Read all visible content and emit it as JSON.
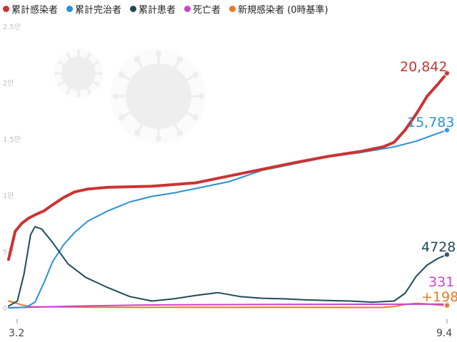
{
  "chart_data": {
    "type": "line",
    "title": "",
    "xlabel": "",
    "ylabel": "",
    "x_range": [
      "3.2",
      "9.4"
    ],
    "x_tick_labels": [
      "3.2",
      "9.4"
    ],
    "y_tick_labels": [
      "0",
      "5천",
      "1만",
      "1.5만",
      "2만",
      "2.5만"
    ],
    "y_tick_values": [
      0,
      5000,
      10000,
      15000,
      20000,
      25000
    ],
    "ylim": [
      0,
      25000
    ],
    "grid": false,
    "legend": "top-left",
    "series": [
      {
        "name": "累計感染者",
        "color": "#cc3333",
        "end_label": "20,842",
        "points": [
          [
            0,
            4300
          ],
          [
            3,
            6800
          ],
          [
            6,
            7500
          ],
          [
            9,
            7950
          ],
          [
            12,
            8250
          ],
          [
            16,
            8600
          ],
          [
            20,
            9150
          ],
          [
            25,
            9800
          ],
          [
            30,
            10300
          ],
          [
            36,
            10550
          ],
          [
            45,
            10700
          ],
          [
            55,
            10750
          ],
          [
            65,
            10800
          ],
          [
            75,
            10950
          ],
          [
            85,
            11100
          ],
          [
            100,
            11700
          ],
          [
            115,
            12300
          ],
          [
            130,
            12900
          ],
          [
            145,
            13450
          ],
          [
            160,
            13900
          ],
          [
            170,
            14300
          ],
          [
            175,
            14700
          ],
          [
            180,
            15800
          ],
          [
            185,
            17200
          ],
          [
            190,
            18800
          ],
          [
            195,
            19900
          ],
          [
            199,
            20842
          ]
        ]
      },
      {
        "name": "累計完治者",
        "color": "#2b8fd6",
        "end_label": "15,783",
        "points": [
          [
            0,
            0
          ],
          [
            8,
            50
          ],
          [
            12,
            500
          ],
          [
            16,
            2200
          ],
          [
            20,
            4100
          ],
          [
            25,
            5600
          ],
          [
            30,
            6700
          ],
          [
            36,
            7700
          ],
          [
            45,
            8600
          ],
          [
            55,
            9400
          ],
          [
            65,
            9900
          ],
          [
            75,
            10200
          ],
          [
            85,
            10600
          ],
          [
            100,
            11200
          ],
          [
            115,
            12200
          ],
          [
            130,
            12800
          ],
          [
            145,
            13400
          ],
          [
            160,
            13800
          ],
          [
            175,
            14300
          ],
          [
            185,
            14800
          ],
          [
            192,
            15300
          ],
          [
            199,
            15783
          ]
        ]
      },
      {
        "name": "累計患者",
        "color": "#1f4a5c",
        "end_label": "4728",
        "points": [
          [
            0,
            150
          ],
          [
            4,
            600
          ],
          [
            7,
            3000
          ],
          [
            10,
            6500
          ],
          [
            12,
            7200
          ],
          [
            15,
            7000
          ],
          [
            20,
            5800
          ],
          [
            27,
            3900
          ],
          [
            35,
            2700
          ],
          [
            45,
            1800
          ],
          [
            55,
            1000
          ],
          [
            65,
            600
          ],
          [
            75,
            800
          ],
          [
            85,
            1100
          ],
          [
            95,
            1350
          ],
          [
            105,
            1000
          ],
          [
            115,
            850
          ],
          [
            125,
            800
          ],
          [
            135,
            700
          ],
          [
            145,
            650
          ],
          [
            155,
            600
          ],
          [
            165,
            500
          ],
          [
            175,
            600
          ],
          [
            180,
            1300
          ],
          [
            185,
            2800
          ],
          [
            190,
            3800
          ],
          [
            195,
            4400
          ],
          [
            199,
            4728
          ]
        ]
      },
      {
        "name": "死亡者",
        "color": "#cc44cc",
        "end_label": "331",
        "points": [
          [
            0,
            0
          ],
          [
            10,
            50
          ],
          [
            30,
            150
          ],
          [
            60,
            250
          ],
          [
            90,
            280
          ],
          [
            120,
            300
          ],
          [
            150,
            310
          ],
          [
            175,
            315
          ],
          [
            190,
            325
          ],
          [
            199,
            331
          ]
        ]
      },
      {
        "name": "新規感染者 (0時基準)",
        "color": "#e87a24",
        "end_label": "+198",
        "points": [
          [
            0,
            600
          ],
          [
            3,
            450
          ],
          [
            6,
            250
          ],
          [
            10,
            100
          ],
          [
            20,
            80
          ],
          [
            40,
            50
          ],
          [
            60,
            40
          ],
          [
            80,
            50
          ],
          [
            100,
            40
          ],
          [
            120,
            50
          ],
          [
            140,
            40
          ],
          [
            160,
            30
          ],
          [
            170,
            40
          ],
          [
            175,
            120
          ],
          [
            180,
            300
          ],
          [
            185,
            400
          ],
          [
            190,
            350
          ],
          [
            195,
            250
          ],
          [
            199,
            198
          ]
        ]
      }
    ]
  }
}
